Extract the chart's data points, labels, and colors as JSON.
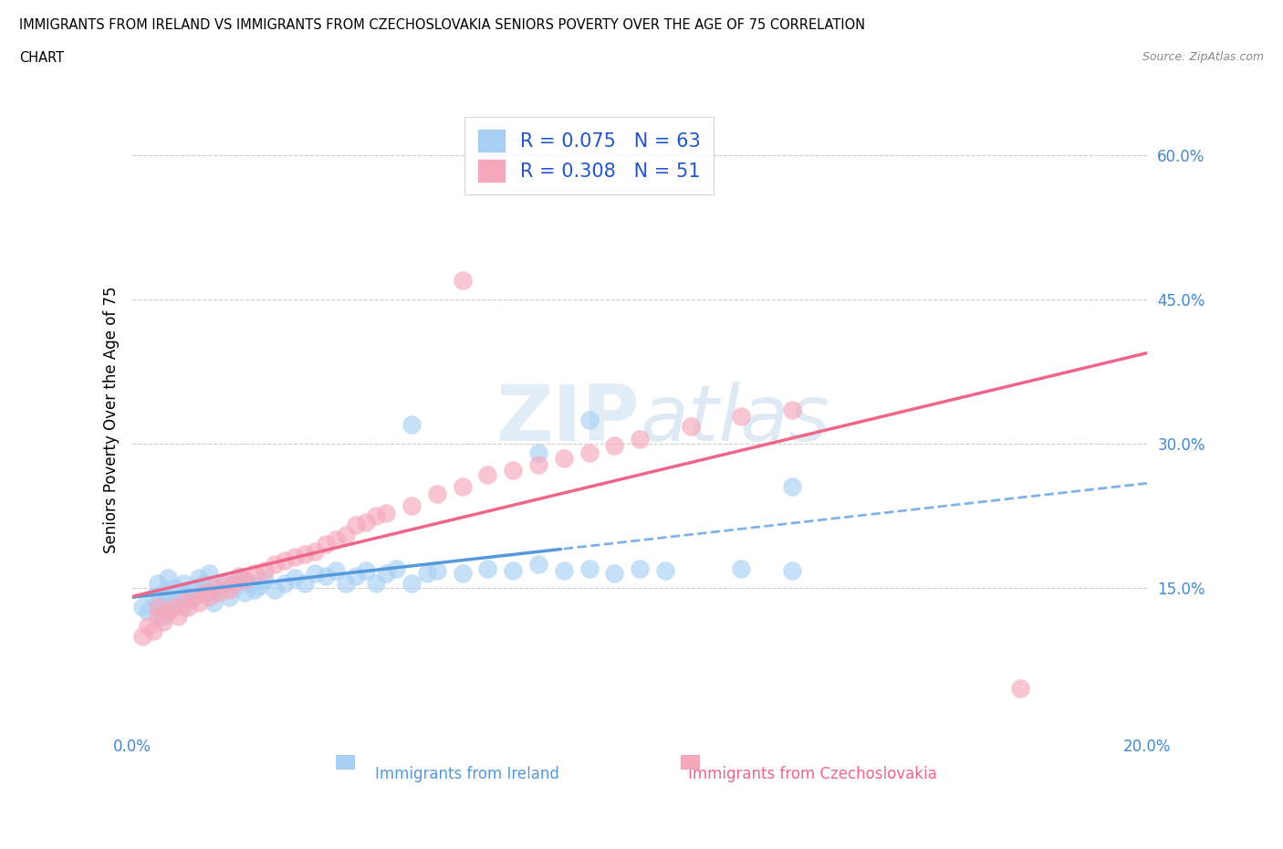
{
  "title_line1": "IMMIGRANTS FROM IRELAND VS IMMIGRANTS FROM CZECHOSLOVAKIA SENIORS POVERTY OVER THE AGE OF 75 CORRELATION",
  "title_line2": "CHART",
  "source": "Source: ZipAtlas.com",
  "ylabel": "Seniors Poverty Over the Age of 75",
  "xlabel_ireland": "Immigrants from Ireland",
  "xlabel_czech": "Immigrants from Czechoslovakia",
  "xlim": [
    0.0,
    0.2
  ],
  "ylim": [
    0.0,
    0.65
  ],
  "yticks": [
    0.15,
    0.3,
    0.45,
    0.6
  ],
  "ytick_labels": [
    "15.0%",
    "30.0%",
    "45.0%",
    "60.0%"
  ],
  "xticks": [
    0.0,
    0.05,
    0.1,
    0.15,
    0.2
  ],
  "xtick_labels": [
    "0.0%",
    "",
    "",
    "",
    "20.0%"
  ],
  "ireland_R": 0.075,
  "ireland_N": 63,
  "czech_R": 0.308,
  "czech_N": 51,
  "ireland_color": "#a8d0f5",
  "czech_color": "#f5a8bb",
  "ireland_line_color": "#5599dd",
  "czech_line_color": "#ee6688",
  "watermark_color": "#d0e8f8",
  "background_color": "#ffffff",
  "grid_color": "#cccccc",
  "legend_text_color": "#2255cc",
  "axis_tick_color": "#4488cc",
  "ireland_x": [
    0.002,
    0.003,
    0.004,
    0.005,
    0.005,
    0.006,
    0.006,
    0.007,
    0.007,
    0.008,
    0.008,
    0.009,
    0.01,
    0.01,
    0.011,
    0.012,
    0.012,
    0.013,
    0.014,
    0.015,
    0.015,
    0.016,
    0.017,
    0.018,
    0.019,
    0.02,
    0.021,
    0.022,
    0.023,
    0.024,
    0.025,
    0.026,
    0.028,
    0.03,
    0.032,
    0.034,
    0.036,
    0.038,
    0.04,
    0.042,
    0.044,
    0.046,
    0.048,
    0.05,
    0.052,
    0.055,
    0.058,
    0.06,
    0.065,
    0.07,
    0.075,
    0.08,
    0.085,
    0.09,
    0.095,
    0.1,
    0.105,
    0.12,
    0.13,
    0.055,
    0.08,
    0.09,
    0.13
  ],
  "ireland_y": [
    0.13,
    0.125,
    0.14,
    0.135,
    0.155,
    0.12,
    0.145,
    0.14,
    0.16,
    0.135,
    0.15,
    0.145,
    0.13,
    0.155,
    0.145,
    0.15,
    0.14,
    0.16,
    0.155,
    0.145,
    0.165,
    0.135,
    0.15,
    0.155,
    0.14,
    0.15,
    0.16,
    0.145,
    0.155,
    0.148,
    0.152,
    0.158,
    0.148,
    0.155,
    0.16,
    0.155,
    0.165,
    0.162,
    0.168,
    0.155,
    0.162,
    0.168,
    0.155,
    0.165,
    0.17,
    0.155,
    0.165,
    0.168,
    0.165,
    0.17,
    0.168,
    0.175,
    0.168,
    0.17,
    0.165,
    0.17,
    0.168,
    0.17,
    0.168,
    0.32,
    0.29,
    0.325,
    0.255
  ],
  "czech_x": [
    0.002,
    0.003,
    0.004,
    0.005,
    0.005,
    0.006,
    0.007,
    0.008,
    0.009,
    0.01,
    0.011,
    0.012,
    0.013,
    0.014,
    0.015,
    0.016,
    0.017,
    0.018,
    0.019,
    0.02,
    0.021,
    0.022,
    0.024,
    0.026,
    0.028,
    0.03,
    0.032,
    0.034,
    0.036,
    0.038,
    0.04,
    0.042,
    0.044,
    0.046,
    0.048,
    0.05,
    0.055,
    0.06,
    0.065,
    0.07,
    0.075,
    0.08,
    0.085,
    0.09,
    0.095,
    0.1,
    0.11,
    0.12,
    0.13,
    0.175,
    0.065
  ],
  "czech_y": [
    0.1,
    0.11,
    0.105,
    0.12,
    0.13,
    0.115,
    0.125,
    0.13,
    0.12,
    0.135,
    0.13,
    0.14,
    0.135,
    0.145,
    0.14,
    0.15,
    0.145,
    0.155,
    0.148,
    0.155,
    0.162,
    0.158,
    0.165,
    0.168,
    0.175,
    0.178,
    0.182,
    0.185,
    0.188,
    0.195,
    0.2,
    0.205,
    0.215,
    0.218,
    0.225,
    0.228,
    0.235,
    0.248,
    0.255,
    0.268,
    0.272,
    0.278,
    0.285,
    0.29,
    0.298,
    0.305,
    0.318,
    0.328,
    0.335,
    0.045,
    0.47
  ]
}
